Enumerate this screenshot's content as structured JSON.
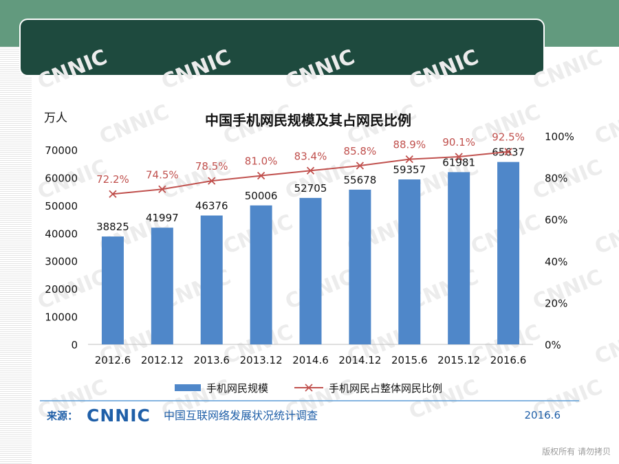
{
  "chart_data": {
    "type": "bar",
    "title": "中国手机网民规模及其占网民比例",
    "y_unit": "万人",
    "categories": [
      "2012.6",
      "2012.12",
      "2013.6",
      "2013.12",
      "2014.6",
      "2014.12",
      "2015.6",
      "2015.12",
      "2016.6"
    ],
    "series": [
      {
        "name": "手机网民规模",
        "type": "bar",
        "axis": "left",
        "color": "#4f87c9",
        "values": [
          38825,
          41997,
          46376,
          50006,
          52705,
          55678,
          59357,
          61981,
          65637
        ],
        "labels": [
          "38825",
          "41997",
          "46376",
          "50006",
          "52705",
          "55678",
          "59357",
          "61981",
          "65637"
        ]
      },
      {
        "name": "手机网民占整体网民比例",
        "type": "line",
        "axis": "right",
        "color": "#c0504d",
        "values": [
          72.2,
          74.5,
          78.5,
          81.0,
          83.4,
          85.8,
          88.9,
          90.1,
          92.5
        ],
        "labels": [
          "72.2%",
          "74.5%",
          "78.5%",
          "81.0%",
          "83.4%",
          "85.8%",
          "88.9%",
          "90.1%",
          "92.5%"
        ]
      }
    ],
    "left_axis": {
      "min": 0,
      "max": 70000,
      "ticks": [
        "0",
        "10000",
        "20000",
        "30000",
        "40000",
        "50000",
        "60000",
        "70000"
      ]
    },
    "right_axis": {
      "min": 0,
      "max": 100,
      "ticks": [
        "0%",
        "20%",
        "40%",
        "60%",
        "80%",
        "100%"
      ]
    },
    "legend_position": "bottom",
    "grid": false
  },
  "source": {
    "label": "来源：",
    "logo": "CNNIC",
    "org": "中国互联网络发展状况统计调查",
    "date": "2016.6"
  },
  "watermark": "CNNIC",
  "footer_note": "版权所有 请勿拷贝"
}
